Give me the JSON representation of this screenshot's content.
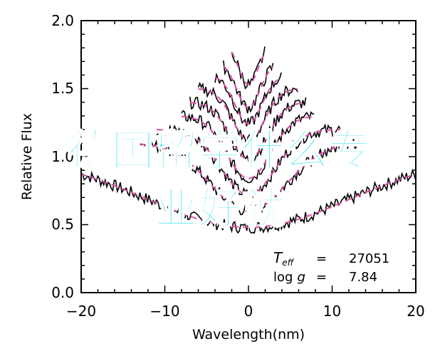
{
  "chart_data": {
    "type": "line",
    "xlabel": "Wavelength(nm)",
    "ylabel": "Relative Flux",
    "xlim": [
      -20,
      20
    ],
    "ylim": [
      0.0,
      2.0
    ],
    "x_ticks": [
      "−20",
      "−10",
      "0",
      "10",
      "20"
    ],
    "x_tick_values": [
      -20,
      -10,
      0,
      10,
      20
    ],
    "y_ticks": [
      "0.0",
      "0.5",
      "1.0",
      "1.5",
      "2.0"
    ],
    "y_tick_values": [
      0.0,
      0.5,
      1.0,
      1.5,
      2.0
    ],
    "series": [
      {
        "offset": 0.0,
        "width": 12,
        "depth": 0.52,
        "halfx": 20
      },
      {
        "offset": 0.1,
        "width": 4.5,
        "depth": 0.5,
        "halfx": 13
      },
      {
        "offset": 0.2,
        "width": 3.2,
        "depth": 0.48,
        "halfx": 11
      },
      {
        "offset": 0.3,
        "width": 2.6,
        "depth": 0.46,
        "halfx": 8
      },
      {
        "offset": 0.4,
        "width": 2.2,
        "depth": 0.42,
        "halfx": 7
      },
      {
        "offset": 0.5,
        "width": 1.9,
        "depth": 0.38,
        "halfx": 6
      },
      {
        "offset": 0.6,
        "width": 1.6,
        "depth": 0.36,
        "halfx": 4
      },
      {
        "offset": 0.7,
        "width": 1.4,
        "depth": 0.34,
        "halfx": 3
      },
      {
        "offset": 0.85,
        "width": 1.2,
        "depth": 0.32,
        "halfx": 2
      }
    ],
    "colors": {
      "observed": "#000000",
      "model": "#d94fa5"
    },
    "annotations": {
      "teff_value": "27051",
      "logg_value": "7.84"
    }
  },
  "overlay": {
    "line1": "德国留学什么专",
    "line2": "业好就"
  },
  "labels": {
    "teff_symbol": "T",
    "teff_sub": "eff",
    "equals": "=",
    "logg_symbol": "log",
    "logg_g": "g"
  }
}
